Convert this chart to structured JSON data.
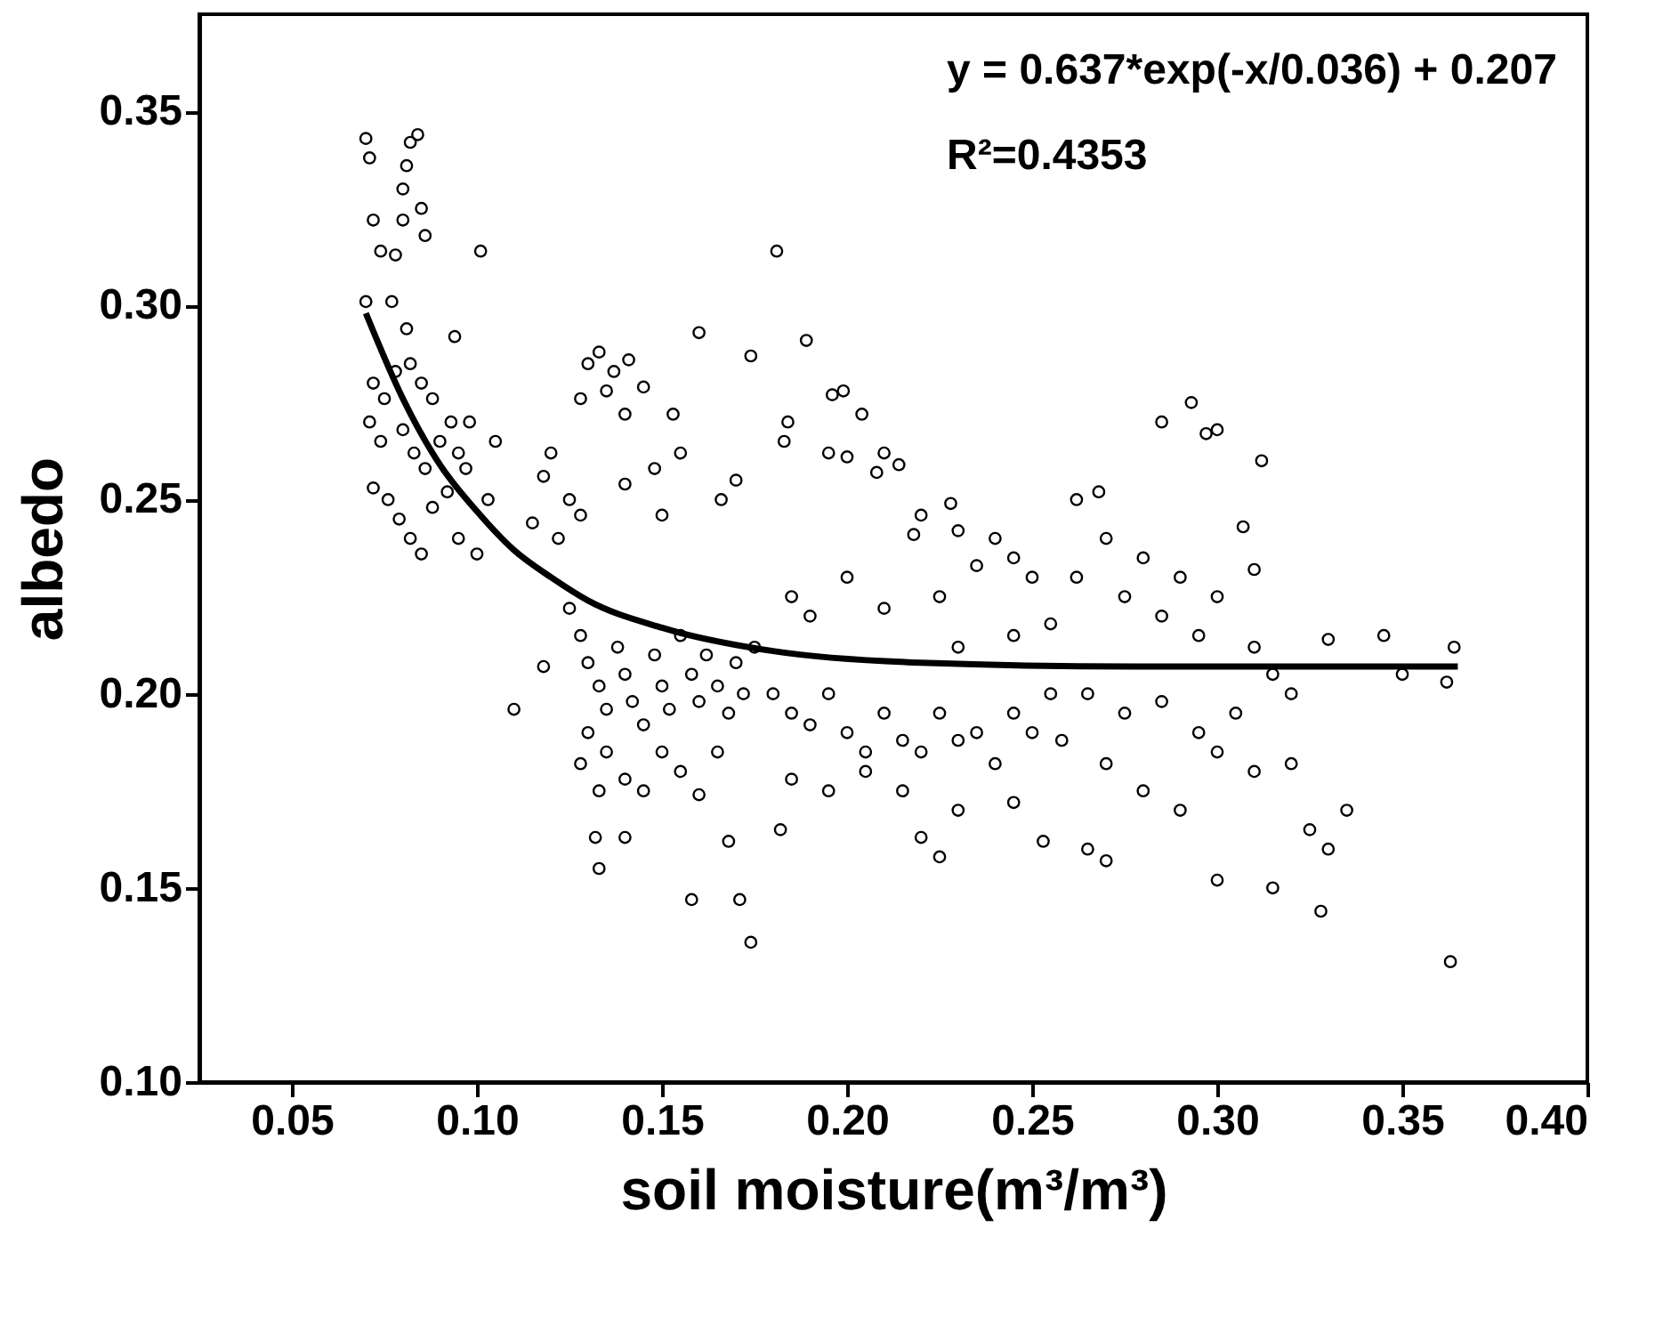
{
  "chart_data": {
    "type": "scatter",
    "xlabel": "soil moisture(m³/m³)",
    "ylabel": "albedo",
    "xlim": [
      0.025,
      0.4
    ],
    "xticks": [
      0.05,
      {
        "value": 0.1,
        "label": "0.10"
      },
      0.15,
      {
        "value": 0.2,
        "label": "0.20"
      },
      0.25,
      {
        "value": 0.3,
        "label": "0.30"
      },
      0.35,
      {
        "value": 0.4,
        "label": "0.40"
      }
    ],
    "ylim": [
      0.1,
      0.375
    ],
    "yticks": [
      {
        "value": 0.1,
        "label": "0.10"
      },
      0.15,
      {
        "value": 0.2,
        "label": "0.20"
      },
      0.25,
      {
        "value": 0.3,
        "label": "0.30"
      },
      0.35
    ],
    "grid": false,
    "marker": "circle",
    "annotations": [
      "y = 0.637*exp(-x/0.036) + 0.207",
      "R²=0.4353"
    ],
    "series": [
      {
        "type": "scatter",
        "color": "#000000",
        "x": [
          0.07,
          0.071,
          0.082,
          0.084,
          0.081,
          0.08,
          0.085,
          0.08,
          0.072,
          0.074,
          0.086,
          0.078,
          0.077,
          0.101,
          0.07,
          0.072,
          0.075,
          0.078,
          0.082,
          0.085,
          0.088,
          0.071,
          0.074,
          0.08,
          0.083,
          0.086,
          0.09,
          0.093,
          0.095,
          0.098,
          0.072,
          0.076,
          0.079,
          0.082,
          0.085,
          0.088,
          0.092,
          0.095,
          0.1,
          0.103,
          0.105,
          0.081,
          0.094,
          0.097,
          0.13,
          0.133,
          0.137,
          0.141,
          0.135,
          0.145,
          0.128,
          0.14,
          0.16,
          0.153,
          0.12,
          0.118,
          0.125,
          0.115,
          0.122,
          0.128,
          0.14,
          0.148,
          0.155,
          0.15,
          0.17,
          0.166,
          0.125,
          0.128,
          0.13,
          0.133,
          0.135,
          0.138,
          0.14,
          0.142,
          0.145,
          0.148,
          0.15,
          0.152,
          0.155,
          0.158,
          0.16,
          0.162,
          0.165,
          0.168,
          0.17,
          0.172,
          0.175,
          0.13,
          0.135,
          0.128,
          0.14,
          0.133,
          0.145,
          0.15,
          0.155,
          0.16,
          0.165,
          0.132,
          0.133,
          0.14,
          0.158,
          0.168,
          0.171,
          0.174,
          0.11,
          0.118,
          0.181,
          0.174,
          0.189,
          0.184,
          0.183,
          0.196,
          0.199,
          0.204,
          0.21,
          0.208,
          0.214,
          0.22,
          0.228,
          0.218,
          0.195,
          0.2,
          0.23,
          0.24,
          0.235,
          0.245,
          0.25,
          0.185,
          0.2,
          0.19,
          0.21,
          0.225,
          0.23,
          0.245,
          0.255,
          0.18,
          0.185,
          0.19,
          0.195,
          0.2,
          0.205,
          0.21,
          0.215,
          0.22,
          0.225,
          0.23,
          0.235,
          0.24,
          0.245,
          0.25,
          0.255,
          0.185,
          0.195,
          0.205,
          0.215,
          0.22,
          0.225,
          0.23,
          0.245,
          0.182,
          0.253,
          0.258,
          0.285,
          0.293,
          0.297,
          0.3,
          0.312,
          0.307,
          0.262,
          0.268,
          0.27,
          0.28,
          0.29,
          0.3,
          0.31,
          0.262,
          0.275,
          0.285,
          0.295,
          0.31,
          0.33,
          0.345,
          0.364,
          0.315,
          0.32,
          0.362,
          0.35,
          0.265,
          0.275,
          0.285,
          0.295,
          0.305,
          0.3,
          0.31,
          0.32,
          0.335,
          0.325,
          0.27,
          0.28,
          0.29,
          0.3,
          0.315,
          0.328,
          0.363,
          0.265,
          0.33,
          0.27
        ],
        "values": [
          0.343,
          0.338,
          0.342,
          0.344,
          0.336,
          0.33,
          0.325,
          0.322,
          0.322,
          0.314,
          0.318,
          0.313,
          0.301,
          0.314,
          0.301,
          0.28,
          0.276,
          0.283,
          0.285,
          0.28,
          0.276,
          0.27,
          0.265,
          0.268,
          0.262,
          0.258,
          0.265,
          0.27,
          0.262,
          0.27,
          0.253,
          0.25,
          0.245,
          0.24,
          0.236,
          0.248,
          0.252,
          0.24,
          0.236,
          0.25,
          0.265,
          0.294,
          0.292,
          0.258,
          0.285,
          0.288,
          0.283,
          0.286,
          0.278,
          0.279,
          0.276,
          0.272,
          0.293,
          0.272,
          0.262,
          0.256,
          0.25,
          0.244,
          0.24,
          0.246,
          0.254,
          0.258,
          0.262,
          0.246,
          0.255,
          0.25,
          0.222,
          0.215,
          0.208,
          0.202,
          0.196,
          0.212,
          0.205,
          0.198,
          0.192,
          0.21,
          0.202,
          0.196,
          0.215,
          0.205,
          0.198,
          0.21,
          0.202,
          0.195,
          0.208,
          0.2,
          0.212,
          0.19,
          0.185,
          0.182,
          0.178,
          0.175,
          0.175,
          0.185,
          0.18,
          0.174,
          0.185,
          0.163,
          0.155,
          0.163,
          0.147,
          0.162,
          0.147,
          0.136,
          0.196,
          0.207,
          0.314,
          0.287,
          0.291,
          0.27,
          0.265,
          0.277,
          0.278,
          0.272,
          0.262,
          0.257,
          0.259,
          0.246,
          0.249,
          0.241,
          0.262,
          0.261,
          0.242,
          0.24,
          0.233,
          0.235,
          0.23,
          0.225,
          0.23,
          0.22,
          0.222,
          0.225,
          0.212,
          0.215,
          0.218,
          0.2,
          0.195,
          0.192,
          0.2,
          0.19,
          0.185,
          0.195,
          0.188,
          0.185,
          0.195,
          0.188,
          0.19,
          0.182,
          0.195,
          0.19,
          0.2,
          0.178,
          0.175,
          0.18,
          0.175,
          0.163,
          0.158,
          0.17,
          0.172,
          0.165,
          0.162,
          0.188,
          0.27,
          0.275,
          0.267,
          0.268,
          0.26,
          0.243,
          0.25,
          0.252,
          0.24,
          0.235,
          0.23,
          0.225,
          0.232,
          0.23,
          0.225,
          0.22,
          0.215,
          0.212,
          0.214,
          0.215,
          0.212,
          0.205,
          0.2,
          0.203,
          0.205,
          0.2,
          0.195,
          0.198,
          0.19,
          0.195,
          0.185,
          0.18,
          0.182,
          0.17,
          0.165,
          0.182,
          0.175,
          0.17,
          0.152,
          0.15,
          0.144,
          0.131,
          0.16,
          0.16,
          0.157
        ]
      },
      {
        "type": "line",
        "color": "#000000",
        "marker": "none",
        "x": [
          0.07,
          0.08,
          0.09,
          0.1,
          0.11,
          0.12,
          0.13,
          0.15,
          0.18,
          0.22,
          0.28,
          0.365
        ],
        "values": [
          0.298,
          0.276,
          0.259,
          0.247,
          0.237,
          0.23,
          0.224,
          0.217,
          0.211,
          0.208,
          0.207,
          0.207
        ]
      }
    ]
  }
}
